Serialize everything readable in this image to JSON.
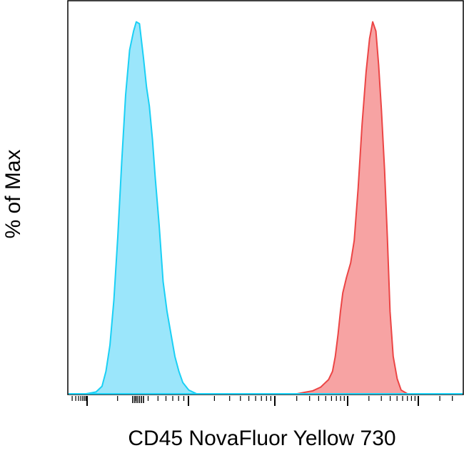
{
  "chart_data": {
    "type": "area",
    "title": "",
    "xlabel": "CD45 NovaFluor Yellow 730",
    "ylabel": "% of Max",
    "x_scale": "log",
    "xlim": [
      0,
      100
    ],
    "ylim": [
      0,
      100
    ],
    "grid": false,
    "legend": "none",
    "series": [
      {
        "color": "#1ad0f5",
        "fill": "#9be6fb",
        "points": [
          [
            4.5,
            0
          ],
          [
            7,
            0.5
          ],
          [
            8.5,
            2
          ],
          [
            9.5,
            6
          ],
          [
            10.5,
            13
          ],
          [
            11.5,
            25
          ],
          [
            12.5,
            42
          ],
          [
            13.5,
            62
          ],
          [
            14.5,
            80
          ],
          [
            15.5,
            92
          ],
          [
            16.5,
            97
          ],
          [
            17.2,
            99.5
          ],
          [
            18,
            99
          ],
          [
            19,
            90
          ],
          [
            19.8,
            82
          ],
          [
            20.5,
            77
          ],
          [
            21.3,
            68
          ],
          [
            22,
            58
          ],
          [
            23,
            45
          ],
          [
            24,
            30
          ],
          [
            25,
            22
          ],
          [
            26,
            16
          ],
          [
            27,
            10
          ],
          [
            28,
            6
          ],
          [
            29,
            3
          ],
          [
            30.5,
            1
          ],
          [
            32.5,
            0
          ]
        ]
      },
      {
        "color": "#ec4545",
        "fill": "#f7a3a3",
        "points": [
          [
            58,
            0
          ],
          [
            60,
            0.4
          ],
          [
            62,
            0.8
          ],
          [
            64,
            1.8
          ],
          [
            65,
            2.8
          ],
          [
            66,
            3.8
          ],
          [
            67,
            6
          ],
          [
            67.7,
            10
          ],
          [
            68.4,
            16
          ],
          [
            69,
            22
          ],
          [
            69.6,
            27
          ],
          [
            70.5,
            31
          ],
          [
            71.6,
            35
          ],
          [
            72.5,
            41
          ],
          [
            73.5,
            55
          ],
          [
            74.5,
            72
          ],
          [
            75.5,
            86
          ],
          [
            76.4,
            95
          ],
          [
            77.2,
            99.5
          ],
          [
            78,
            97
          ],
          [
            78.7,
            88
          ],
          [
            79.4,
            76
          ],
          [
            80.2,
            60
          ],
          [
            80.9,
            42
          ],
          [
            81.6,
            22
          ],
          [
            82.4,
            10
          ],
          [
            83.4,
            4
          ],
          [
            84.4,
            1
          ],
          [
            86,
            0
          ]
        ]
      }
    ]
  }
}
